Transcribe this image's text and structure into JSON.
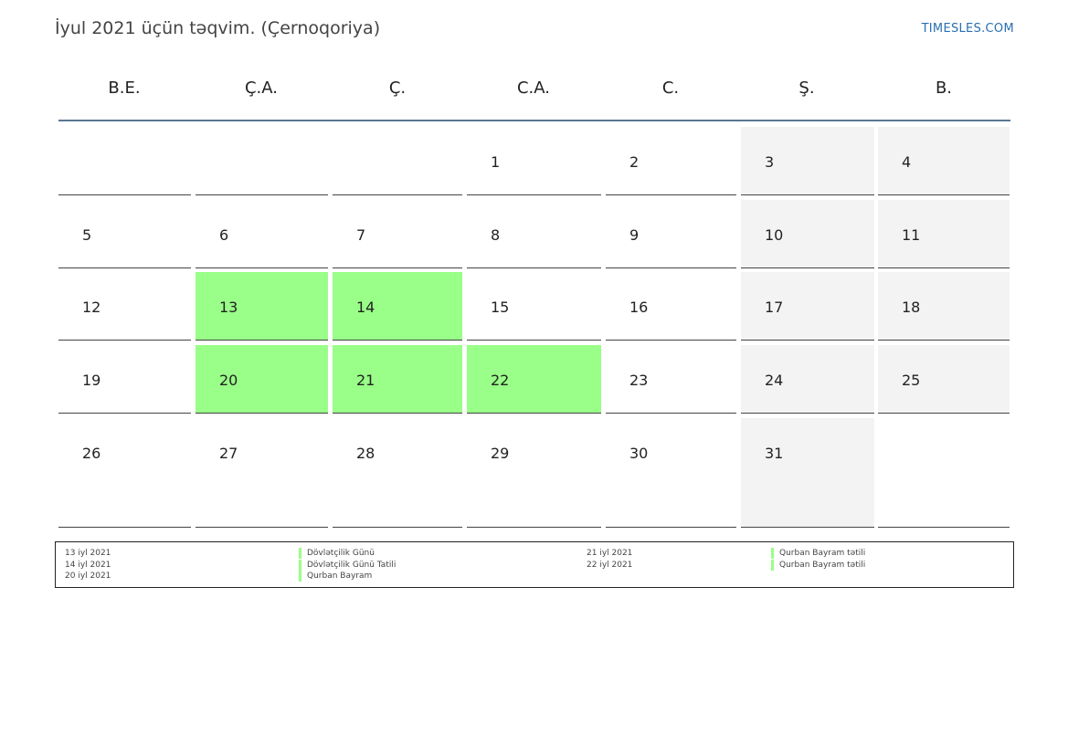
{
  "title": "İyul 2021 üçün təqvim. (Çernoqoriya)",
  "brand": "TIMESLES.COM",
  "weekdays": [
    "B.E.",
    "Ç.A.",
    "Ç.",
    "C.A.",
    "C.",
    "Ş.",
    "B."
  ],
  "weeks": [
    [
      null,
      null,
      null,
      1,
      2,
      3,
      4
    ],
    [
      5,
      6,
      7,
      8,
      9,
      10,
      11
    ],
    [
      12,
      13,
      14,
      15,
      16,
      17,
      18
    ],
    [
      19,
      20,
      21,
      22,
      23,
      24,
      25
    ],
    [
      26,
      27,
      28,
      29,
      30,
      31,
      null
    ]
  ],
  "holiday_days": [
    13,
    14,
    20,
    21,
    22
  ],
  "colors": {
    "holiday": "#99ff88",
    "weekend": "#f3f3f3",
    "header_line": "#5b7696",
    "brand": "#2a6fb0"
  },
  "holidays": [
    {
      "date": "13 iyl 2021",
      "name": "Dövlətçilik Günü"
    },
    {
      "date": "14 iyl 2021",
      "name": "Dövlətçilik Günü Tatili"
    },
    {
      "date": "20 iyl 2021",
      "name": "Qurban Bayram"
    },
    {
      "date": "21 iyl 2021",
      "name": "Qurban Bayram tətili"
    },
    {
      "date": "22 iyl 2021",
      "name": "Qurban Bayram tətili"
    }
  ]
}
